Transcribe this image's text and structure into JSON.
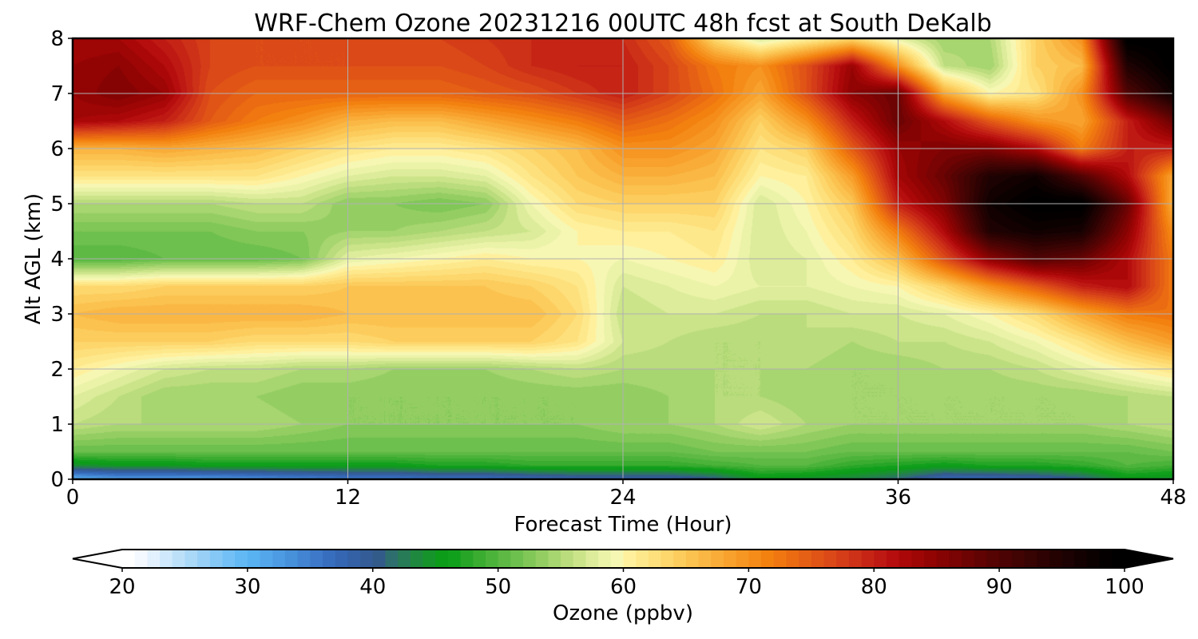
{
  "chart_data": {
    "type": "heatmap",
    "subtype": "filled-contour time-height cross-section",
    "title": "WRF-Chem Ozone  20231216 00UTC 48h fcst at South DeKalb",
    "xlabel": "Forecast Time (Hour)",
    "ylabel": "Alt AGL (km)",
    "xlim": [
      0,
      48
    ],
    "ylim": [
      0,
      8
    ],
    "x_ticks": [
      "0",
      "12",
      "24",
      "36",
      "48"
    ],
    "y_ticks": [
      "0",
      "1",
      "2",
      "3",
      "4",
      "5",
      "6",
      "7",
      "8"
    ],
    "grid": true,
    "x_hours": [
      0,
      2,
      4,
      6,
      8,
      10,
      12,
      14,
      16,
      18,
      20,
      22,
      24,
      26,
      28,
      30,
      32,
      34,
      36,
      38,
      40,
      42,
      44,
      46,
      48
    ],
    "altitudes_km": [
      0,
      0.25,
      0.5,
      1,
      1.5,
      2,
      2.5,
      3,
      3.5,
      4,
      4.5,
      5,
      5.5,
      6,
      6.5,
      7,
      7.5,
      8
    ],
    "ozone_ppbv": [
      [
        30,
        32,
        32,
        32,
        33,
        34,
        35,
        35,
        36,
        36,
        37,
        38,
        38,
        38,
        40,
        45,
        44,
        43,
        41,
        37,
        37,
        38,
        40,
        45,
        44
      ],
      [
        44,
        45,
        45,
        46,
        46,
        46,
        46,
        46,
        47,
        47,
        48,
        48,
        48,
        48,
        49,
        50,
        50,
        48,
        47,
        46,
        47,
        47,
        48,
        50,
        49
      ],
      [
        51,
        51,
        51,
        51,
        51,
        51,
        51,
        51,
        51,
        51,
        51,
        51,
        51,
        51,
        52,
        52,
        52,
        51,
        51,
        51,
        51,
        51,
        51,
        51,
        52
      ],
      [
        56,
        55,
        55,
        55,
        55,
        54,
        53,
        53,
        53,
        53,
        53,
        53,
        54,
        54,
        55,
        57,
        55,
        54,
        54,
        54,
        54,
        54,
        54,
        55,
        56
      ],
      [
        58,
        56,
        54,
        54,
        54,
        53,
        53,
        53,
        53,
        53,
        53,
        53,
        53,
        54,
        55,
        55,
        54,
        54,
        54,
        54,
        54,
        54,
        54,
        55,
        56
      ],
      [
        61,
        59,
        57,
        56,
        56,
        55,
        55,
        54,
        54,
        54,
        55,
        56,
        55,
        55,
        55,
        55,
        55,
        54,
        54,
        55,
        55,
        56,
        58,
        60,
        62
      ],
      [
        64,
        64,
        64,
        64,
        63,
        63,
        63,
        64,
        64,
        64,
        64,
        62,
        57,
        56,
        55,
        55,
        56,
        55,
        56,
        56,
        57,
        59,
        62,
        66,
        69
      ],
      [
        66,
        67,
        67,
        67,
        67,
        67,
        66,
        66,
        66,
        66,
        66,
        63,
        56,
        57,
        57,
        56,
        56,
        57,
        57,
        58,
        60,
        63,
        68,
        72,
        73
      ],
      [
        63,
        63,
        64,
        64,
        64,
        64,
        65,
        65,
        65,
        65,
        64,
        62,
        57,
        58,
        59,
        58,
        58,
        59,
        60,
        64,
        70,
        75,
        80,
        82,
        72
      ],
      [
        50,
        50,
        51,
        51,
        51,
        52,
        58,
        59,
        60,
        61,
        60,
        60,
        59,
        60,
        61,
        57,
        58,
        61,
        66,
        76,
        85,
        90,
        88,
        82,
        72
      ],
      [
        52,
        52,
        52,
        52,
        53,
        53,
        54,
        54,
        55,
        56,
        57,
        60,
        61,
        61,
        62,
        57,
        59,
        63,
        72,
        82,
        95,
        97,
        96,
        85,
        70
      ],
      [
        55,
        55,
        55,
        55,
        56,
        56,
        53,
        53,
        52,
        53,
        59,
        63,
        64,
        64,
        64,
        57,
        60,
        65,
        80,
        86,
        97,
        100,
        100,
        88,
        67
      ],
      [
        62,
        62,
        62,
        62,
        62,
        60,
        58,
        57,
        57,
        58,
        62,
        65,
        67,
        67,
        66,
        60,
        61,
        69,
        83,
        88,
        95,
        97,
        90,
        82,
        68
      ],
      [
        67,
        67,
        68,
        67,
        66,
        64,
        62,
        61,
        61,
        62,
        64,
        66,
        70,
        70,
        68,
        62,
        64,
        75,
        84,
        86,
        86,
        82,
        72,
        80,
        80
      ],
      [
        83,
        82,
        80,
        75,
        72,
        70,
        67,
        66,
        66,
        68,
        70,
        72,
        75,
        73,
        70,
        64,
        70,
        80,
        88,
        82,
        75,
        70,
        68,
        80,
        88
      ],
      [
        84,
        86,
        84,
        76,
        74,
        74,
        74,
        74,
        74,
        75,
        76,
        78,
        80,
        77,
        73,
        68,
        76,
        85,
        88,
        68,
        60,
        62,
        70,
        90,
        97
      ],
      [
        84,
        85,
        82,
        77,
        76,
        76,
        76,
        76,
        76,
        77,
        79,
        80,
        80,
        77,
        72,
        70,
        76,
        84,
        70,
        56,
        54,
        64,
        66,
        95,
        100
      ],
      [
        83,
        83,
        80,
        77,
        76,
        76,
        76,
        77,
        77,
        78,
        79,
        80,
        79,
        75,
        63,
        57,
        60,
        63,
        58,
        54,
        55,
        64,
        70,
        100,
        100
      ]
    ],
    "colorbar": {
      "label": "Ozone  (ppbv)",
      "ticks": [
        "20",
        "30",
        "40",
        "50",
        "60",
        "70",
        "80",
        "90",
        "100"
      ],
      "min": 20,
      "max": 100,
      "step": 1,
      "extend": "both",
      "orientation": "horizontal",
      "placement": "bottom",
      "colors": [
        "#ffffff",
        "#f3f9ff",
        "#e3f1ff",
        "#cfe8fb",
        "#bde0f9",
        "#aad8f7",
        "#97cff6",
        "#85c8f6",
        "#72c0f5",
        "#62b9f4",
        "#58b1f0",
        "#53a6ea",
        "#4d9be2",
        "#4790da",
        "#4284d1",
        "#3d79c8",
        "#386ebe",
        "#3466b2",
        "#3461a5",
        "#345d98",
        "#335b8a",
        "#2e6e6e",
        "#277b56",
        "#1f883f",
        "#16932b",
        "#0d9b1a",
        "#11a01c",
        "#27a527",
        "#3aac30",
        "#4cb33a",
        "#5db943",
        "#6dc04d",
        "#80c757",
        "#94ce63",
        "#a7d56f",
        "#badc7c",
        "#cbe48a",
        "#dcec9a",
        "#ebf3a9",
        "#f7f7b4",
        "#fff09d",
        "#fee88c",
        "#fde07c",
        "#fdd66c",
        "#fccc5c",
        "#fbc24f",
        "#fab743",
        "#f9ac38",
        "#f8a12d",
        "#f69623",
        "#f58c19",
        "#f3810f",
        "#ef7610",
        "#ea6b12",
        "#e56014",
        "#e05416",
        "#db4918",
        "#d43d18",
        "#cd3117",
        "#c62516",
        "#bf1914",
        "#b60e0e",
        "#aa0808",
        "#9e0505",
        "#920404",
        "#860303",
        "#7a0303",
        "#6e0303",
        "#620303",
        "#560303",
        "#4c0303",
        "#420303",
        "#380303",
        "#2e0202",
        "#250202",
        "#1c0202",
        "#130101",
        "#0b0101",
        "#050000",
        "#000000"
      ]
    }
  }
}
